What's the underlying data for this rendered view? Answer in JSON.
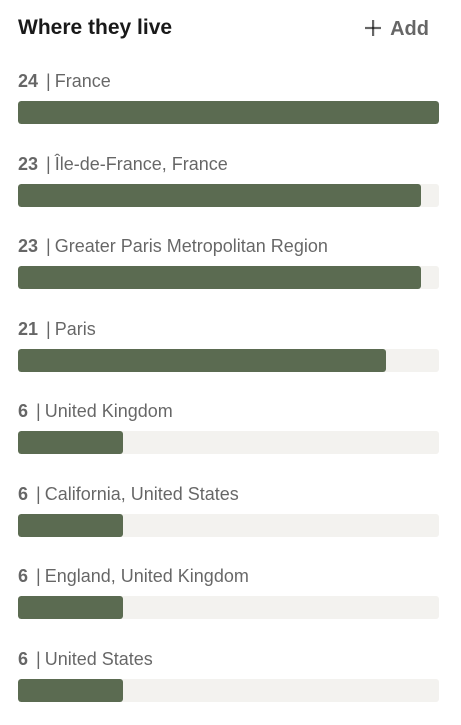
{
  "header": {
    "title": "Where they live",
    "add_label": "Add",
    "add_icon": "plus-icon"
  },
  "colors": {
    "bar_fill": "#5b6b51",
    "bar_track": "#f3f2ef"
  },
  "items": [
    {
      "count": "24",
      "separator": "|",
      "name": "France",
      "fraction": 1.0
    },
    {
      "count": "23",
      "separator": "|",
      "name": "Île-de-France, France",
      "fraction": 0.958
    },
    {
      "count": "23",
      "separator": "|",
      "name": "Greater Paris Metropolitan Region",
      "fraction": 0.958
    },
    {
      "count": "21",
      "separator": "|",
      "name": "Paris",
      "fraction": 0.875
    },
    {
      "count": "6",
      "separator": "|",
      "name": "United Kingdom",
      "fraction": 0.25
    },
    {
      "count": "6",
      "separator": "|",
      "name": "California, United States",
      "fraction": 0.25
    },
    {
      "count": "6",
      "separator": "|",
      "name": "England, United Kingdom",
      "fraction": 0.25
    },
    {
      "count": "6",
      "separator": "|",
      "name": "United States",
      "fraction": 0.25
    }
  ]
}
